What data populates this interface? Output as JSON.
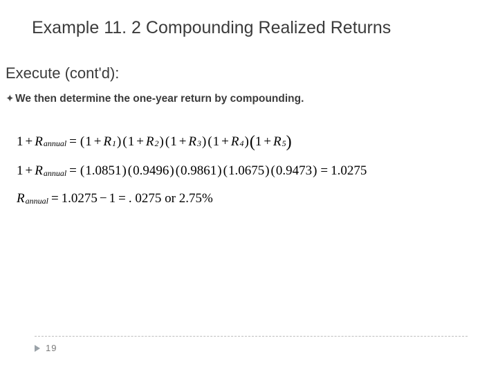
{
  "title": "Example 11. 2 Compounding Realized Returns",
  "section": "Execute (cont'd):",
  "bullet": "We then determine the one-year return by compounding.",
  "eq": {
    "lhs1_pre": "1",
    "R": "R",
    "sub_annual": "annual",
    "sub1": "1",
    "sub2": "2",
    "sub3": "3",
    "sub4": "4",
    "sub5": "5",
    "v1": "1.0851",
    "v2": "0.9496",
    "v3": "0.9861",
    "v4": "1.0675",
    "v5": "0.9473",
    "product": "1.0275",
    "minus1": "1",
    "result_dec": ". 0275",
    "or_word": "or",
    "result_pct": "2.75%"
  },
  "page": "19",
  "colors": {
    "text": "#3b3b3b",
    "eq_text": "#000000",
    "rule": "#bdbdbd",
    "tri": "#9aa2a8",
    "page": "#7a7a7a",
    "bg": "#ffffff"
  }
}
